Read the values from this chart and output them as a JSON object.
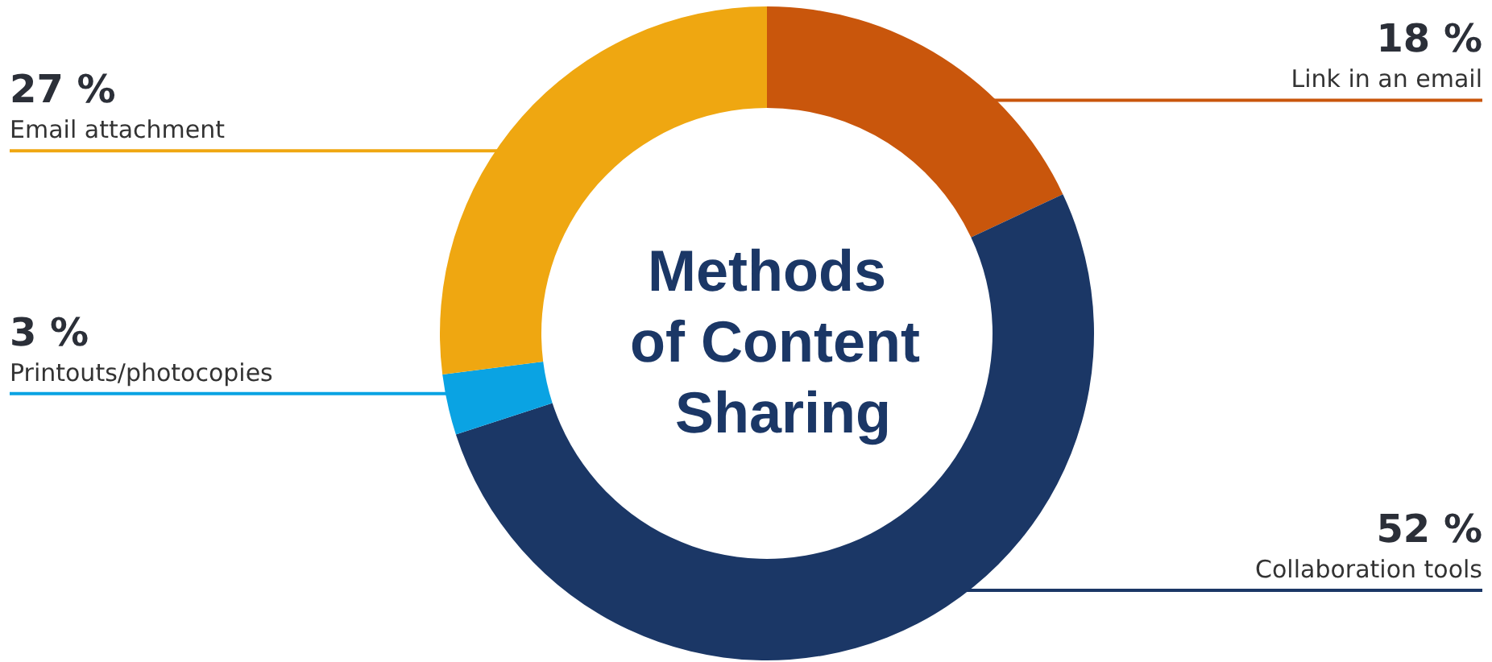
{
  "chart_data": {
    "type": "donut",
    "title": "Methods of Content Sharing",
    "categories": [
      "Link in an email",
      "Collaboration tools",
      "Printouts/photocopies",
      "Email attachment"
    ],
    "values": [
      18,
      52,
      3,
      27
    ],
    "value_labels": [
      "18 %",
      "52 %",
      "3 %",
      "27 %"
    ],
    "colors": [
      "#c9560c",
      "#1b3766",
      "#0aa3e3",
      "#efa711"
    ],
    "legend": false
  }
}
